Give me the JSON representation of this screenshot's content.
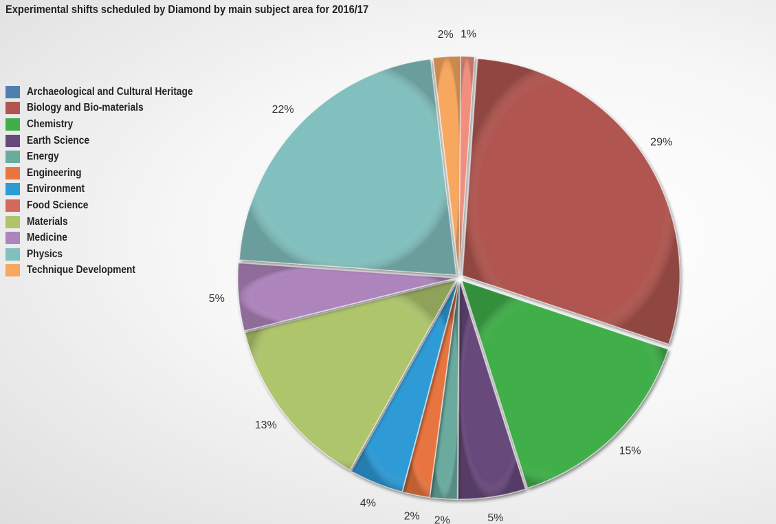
{
  "chart_data": {
    "type": "pie",
    "title": "Experimental shifts scheduled by Diamond by main subject area for 2016/17",
    "legend_position": "left",
    "slices": [
      {
        "name": "Archaeological and Cultural Heritage",
        "value": 0,
        "label": "",
        "color": "#4e7fb0"
      },
      {
        "name": "Biology and Bio-materials",
        "value": 29,
        "label": "29%",
        "color": "#b0554f"
      },
      {
        "name": "Chemistry",
        "value": 15,
        "label": "15%",
        "color": "#41ae4a"
      },
      {
        "name": "Earth Science",
        "value": 5,
        "label": "5%",
        "color": "#674a7c"
      },
      {
        "name": "Energy",
        "value": 2,
        "label": "2%",
        "color": "#6aab9e"
      },
      {
        "name": "Engineering",
        "value": 2,
        "label": "2%",
        "color": "#e8743f"
      },
      {
        "name": "Environment",
        "value": 4,
        "label": "4%",
        "color": "#2e9ad6"
      },
      {
        "name": "Food Science",
        "value": 0,
        "label": "",
        "color": "#d5675f"
      },
      {
        "name": "Materials",
        "value": 13,
        "label": "13%",
        "color": "#aec56c"
      },
      {
        "name": "Medicine",
        "value": 5,
        "label": "5%",
        "color": "#ae84bc"
      },
      {
        "name": "Physics",
        "value": 22,
        "label": "22%",
        "color": "#81c0be"
      },
      {
        "name": "Technique Development",
        "value": 2,
        "label": "2%",
        "color": "#f8a75e"
      },
      {
        "name": "",
        "value": 1,
        "label": "1%",
        "color": "#f08f7e"
      }
    ]
  }
}
